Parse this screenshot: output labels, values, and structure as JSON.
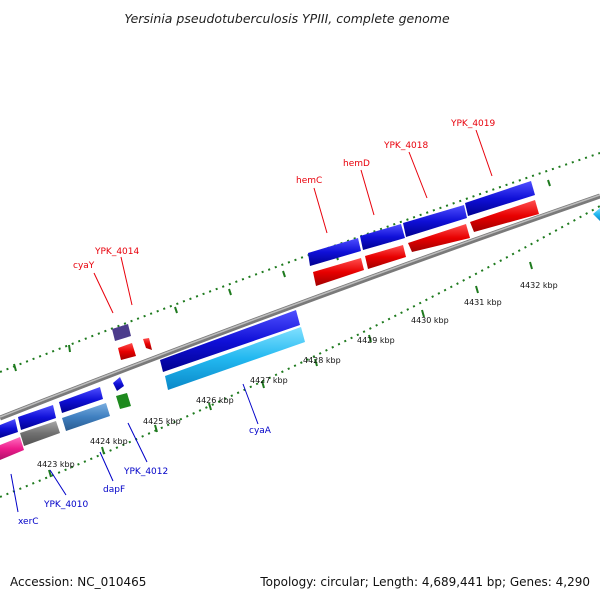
{
  "title": "Yersinia pseudotuberculosis YPIII, complete genome",
  "footer": {
    "accession": "Accession: NC_010465",
    "topology": "Topology: circular; Length: 4,689,441 bp; Genes: 4,290"
  },
  "colors": {
    "backbone": "#8a8a8a",
    "tick": "#1e7a1e",
    "forward_gene": "#1010d8",
    "reverse_gene": "#e80000",
    "reverse_label": "#0000c8",
    "forward_label": "#e8000b",
    "light_blue": "#22b8f0",
    "steel_blue": "#3f7fc0",
    "purple": "#4c3c8c",
    "magenta": "#ee1c8c",
    "gray_feature": "#707070",
    "green_feature": "#1e8a1e"
  },
  "scale_labels": [
    "4423 kbp",
    "4424 kbp",
    "4425 kbp",
    "4426 kbp",
    "4427 kbp",
    "4428 kbp",
    "4429 kbp",
    "4430 kbp",
    "4431 kbp",
    "4432 kbp"
  ],
  "forward_gene_labels": [
    "cyaY",
    "YPK_4014",
    "hemC",
    "hemD",
    "YPK_4018",
    "YPK_4019"
  ],
  "reverse_gene_labels": [
    "xerC",
    "YPK_4010",
    "dapF",
    "YPK_4012",
    "cyaA"
  ]
}
